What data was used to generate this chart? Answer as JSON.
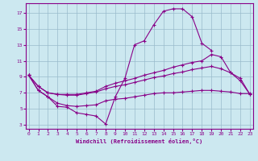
{
  "xlabel": "Windchill (Refroidissement éolien,°C)",
  "bg_color": "#cce8f0",
  "line_color": "#880088",
  "grid_color": "#99bbcc",
  "x_ticks": [
    0,
    1,
    2,
    3,
    4,
    5,
    6,
    7,
    8,
    9,
    10,
    11,
    12,
    13,
    14,
    15,
    16,
    17,
    18,
    19,
    20,
    21,
    22,
    23
  ],
  "y_ticks": [
    3,
    5,
    7,
    9,
    11,
    13,
    15,
    17
  ],
  "xlim": [
    -0.3,
    23.3
  ],
  "ylim": [
    2.5,
    18.2
  ],
  "lines": [
    {
      "x": [
        0,
        1,
        2,
        3,
        4,
        5,
        6,
        7,
        8,
        9,
        10,
        11,
        12,
        13,
        14,
        15,
        16,
        17,
        18,
        19,
        20,
        21,
        22,
        23
      ],
      "y": [
        9.2,
        7.3,
        6.5,
        5.3,
        5.2,
        4.5,
        4.3,
        4.1,
        3.1,
        6.5,
        8.8,
        13.0,
        13.5,
        15.5,
        17.2,
        17.5,
        17.5,
        16.5,
        13.2,
        12.3,
        null,
        null,
        null,
        null
      ]
    },
    {
      "x": [
        0,
        1,
        2,
        3,
        4,
        5,
        6,
        7,
        8,
        9,
        10,
        11,
        12,
        13,
        14,
        15,
        16,
        17,
        18,
        19,
        20,
        21,
        22,
        23
      ],
      "y": [
        9.2,
        7.8,
        7.0,
        6.8,
        6.8,
        6.8,
        7.0,
        7.2,
        7.8,
        8.2,
        8.5,
        8.8,
        9.2,
        9.5,
        9.8,
        10.2,
        10.5,
        10.8,
        11.0,
        11.8,
        11.5,
        9.5,
        8.5,
        6.8
      ]
    },
    {
      "x": [
        0,
        1,
        2,
        3,
        4,
        5,
        6,
        7,
        8,
        9,
        10,
        11,
        12,
        13,
        14,
        15,
        16,
        17,
        18,
        19,
        20,
        21,
        22,
        23
      ],
      "y": [
        9.2,
        7.8,
        7.0,
        6.8,
        6.7,
        6.7,
        6.9,
        7.1,
        7.5,
        7.8,
        8.0,
        8.3,
        8.6,
        8.9,
        9.1,
        9.4,
        9.6,
        9.9,
        10.1,
        10.3,
        10.0,
        9.5,
        8.8,
        6.8
      ]
    },
    {
      "x": [
        0,
        1,
        2,
        3,
        4,
        5,
        6,
        7,
        8,
        9,
        10,
        11,
        12,
        13,
        14,
        15,
        16,
        17,
        18,
        19,
        20,
        21,
        22,
        23
      ],
      "y": [
        9.2,
        7.3,
        6.5,
        5.7,
        5.4,
        5.3,
        5.4,
        5.5,
        6.0,
        6.2,
        6.3,
        6.5,
        6.7,
        6.9,
        7.0,
        7.0,
        7.1,
        7.2,
        7.3,
        7.3,
        7.2,
        7.1,
        6.9,
        6.9
      ]
    }
  ]
}
